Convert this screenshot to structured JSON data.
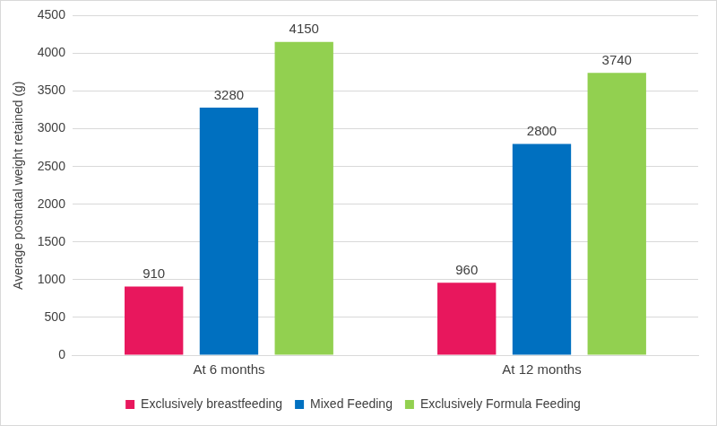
{
  "chart_data": {
    "type": "bar",
    "y_label": "Average postnatal weight retained (g)",
    "categories": [
      "At 6 months",
      "At 12 months"
    ],
    "series": [
      {
        "name": "Exclusively breastfeeding",
        "color": "#e8175d",
        "values": [
          910,
          960
        ]
      },
      {
        "name": "Mixed Feeding",
        "color": "#0070c0",
        "values": [
          3280,
          2800
        ]
      },
      {
        "name": "Exclusively Formula Feeding",
        "color": "#92d050",
        "values": [
          4150,
          3740
        ]
      }
    ],
    "ylim": [
      0,
      4500
    ],
    "yticks": [
      0,
      500,
      1000,
      1500,
      2000,
      2500,
      3000,
      3500,
      4000,
      4500
    ],
    "grid": true,
    "legend": "bottom",
    "data_labels": true
  }
}
